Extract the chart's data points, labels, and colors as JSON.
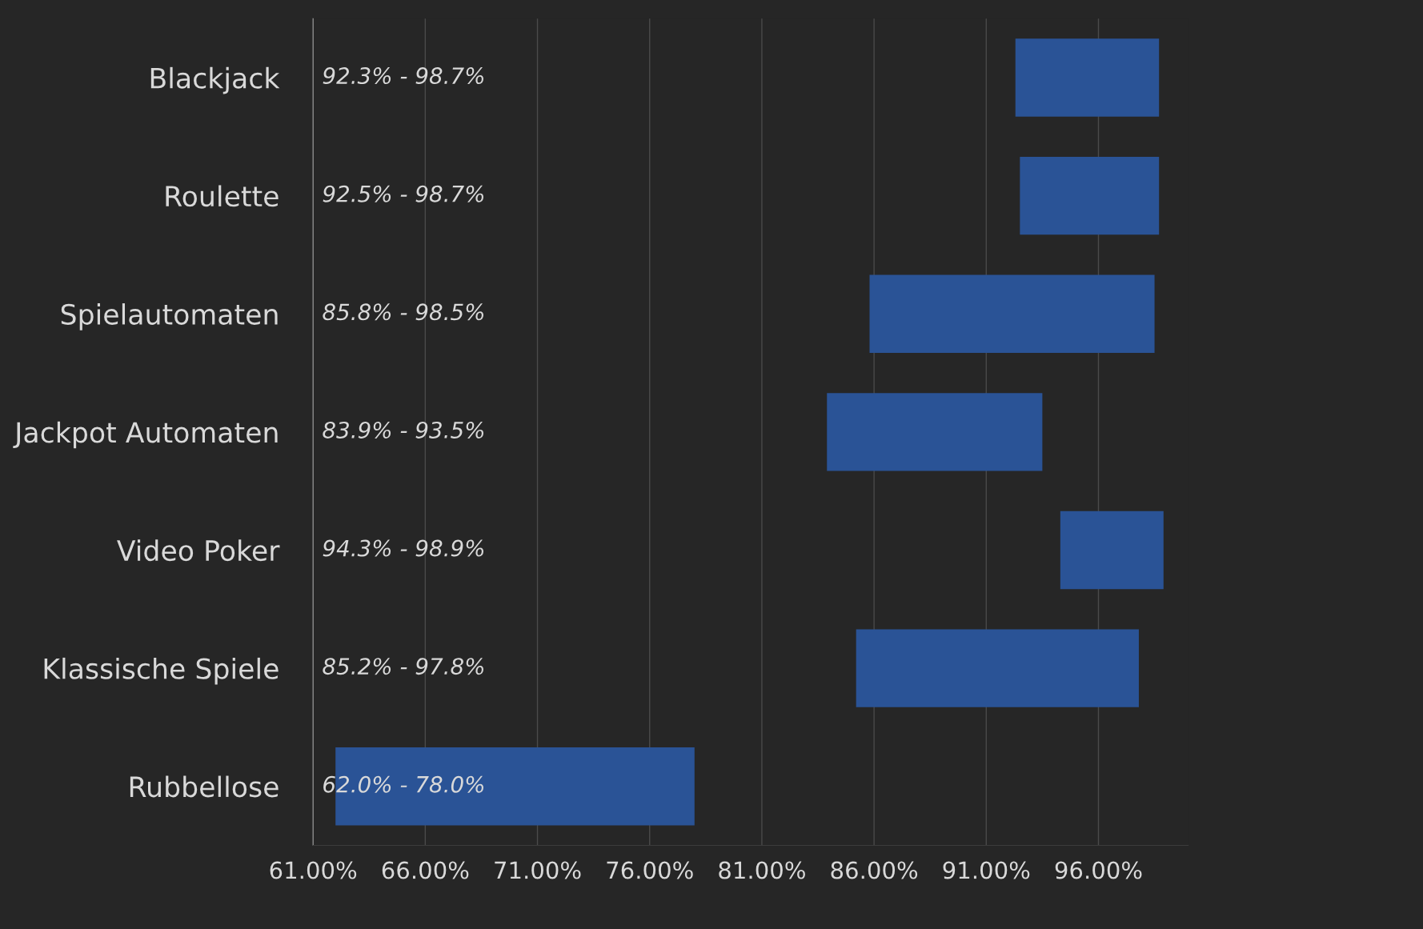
{
  "chart_data": {
    "type": "bar",
    "orientation": "horizontal",
    "categories": [
      "Blackjack",
      "Roulette",
      "Spielautomaten",
      "Jackpot Automaten",
      "Video Poker",
      "Klassische Spiele",
      "Rubbellose"
    ],
    "base": [
      92.3,
      92.5,
      85.8,
      83.9,
      94.3,
      85.2,
      62.0
    ],
    "values": [
      6.4,
      6.2,
      12.7,
      9.6,
      4.6,
      12.6,
      16.0
    ],
    "annotations": [
      "92.3% - 98.7%",
      "92.5% - 98.7%",
      "85.8% - 98.5%",
      "83.9% - 93.5%",
      "94.3% - 98.9%",
      "85.2% - 97.8%",
      "62.0% - 78.0%"
    ],
    "color": "#2a5396",
    "xlim": [
      61,
      100
    ],
    "xticks": [
      {
        "value": 61,
        "label": "61.00%"
      },
      {
        "value": 66,
        "label": "66.00%"
      },
      {
        "value": 71,
        "label": "71.00%"
      },
      {
        "value": 76,
        "label": "76.00%"
      },
      {
        "value": 81,
        "label": "81.00%"
      },
      {
        "value": 86,
        "label": "86.00%"
      },
      {
        "value": 91,
        "label": "91.00%"
      },
      {
        "value": 96,
        "label": "96.00%"
      }
    ],
    "grid": "x"
  }
}
